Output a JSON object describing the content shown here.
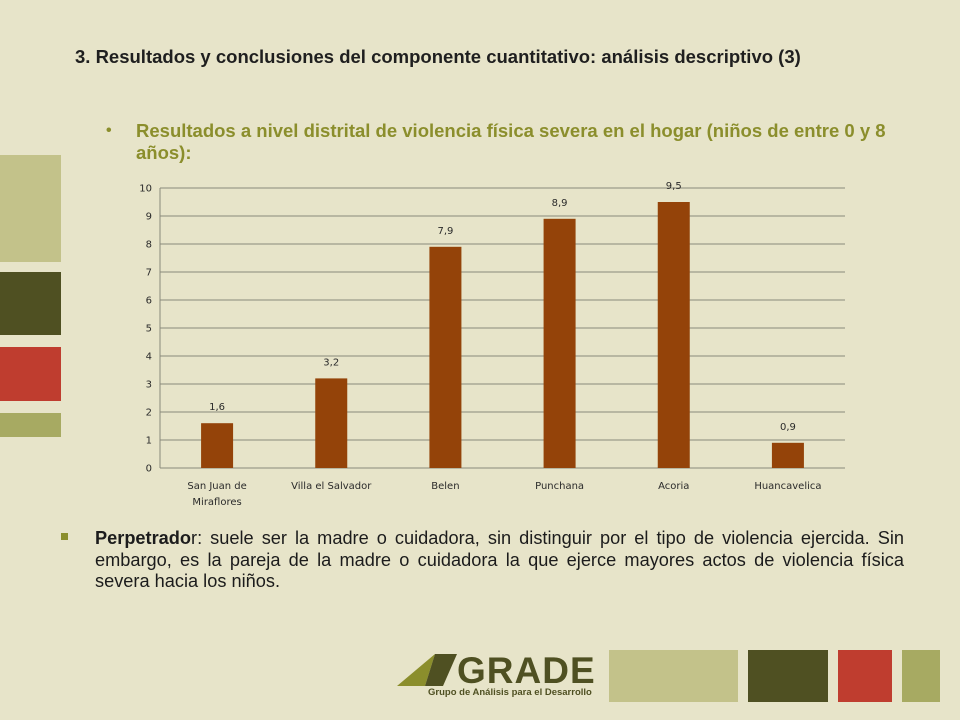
{
  "slide": {
    "title": "3. Resultados y conclusiones del componente cuantitativo: análisis descriptivo  (3)",
    "bullet_main": "Resultados a nivel distrital de violencia física severa en el hogar (niños de entre 0 y 8 años):",
    "bullet_char": "•",
    "perpetrador_label": "Perpetrado",
    "perpetrador_text": "r: suele ser la madre o cuidadora, sin distinguir por el tipo de violencia ejercida. Sin embargo, es la pareja de la madre o cuidadora la que ejerce mayores actos de violencia física severa hacia los niños.",
    "logo_name": "GRADE",
    "logo_subtitle": "Grupo de Análisis para el Desarrollo"
  },
  "colors": {
    "background": "#e7e4c9",
    "bar": "#944309",
    "accent_olive": "#8b8e2c",
    "deco_light": "#c3c28a",
    "deco_dark": "#4f5022",
    "deco_red": "#bf3d2f"
  },
  "chart_data": {
    "type": "bar",
    "categories": [
      "San Juan de Miraflores",
      "Villa el Salvador",
      "Belen",
      "Punchana",
      "Acoria",
      "Huancavelica"
    ],
    "category_lines": [
      [
        "San Juan de",
        "Miraflores"
      ],
      [
        "Villa el Salvador"
      ],
      [
        "Belen"
      ],
      [
        "Punchana"
      ],
      [
        "Acoria"
      ],
      [
        "Huancavelica"
      ]
    ],
    "values": [
      1.6,
      3.2,
      7.9,
      8.9,
      9.5,
      0.9
    ],
    "data_labels": [
      "1,6",
      "3,2",
      "7,9",
      "8,9",
      "9,5",
      "0,9"
    ],
    "ylim": [
      0,
      10
    ],
    "yticks": [
      0,
      1,
      2,
      3,
      4,
      5,
      6,
      7,
      8,
      9,
      10
    ],
    "grid": true,
    "title": "",
    "xlabel": "",
    "ylabel": ""
  }
}
